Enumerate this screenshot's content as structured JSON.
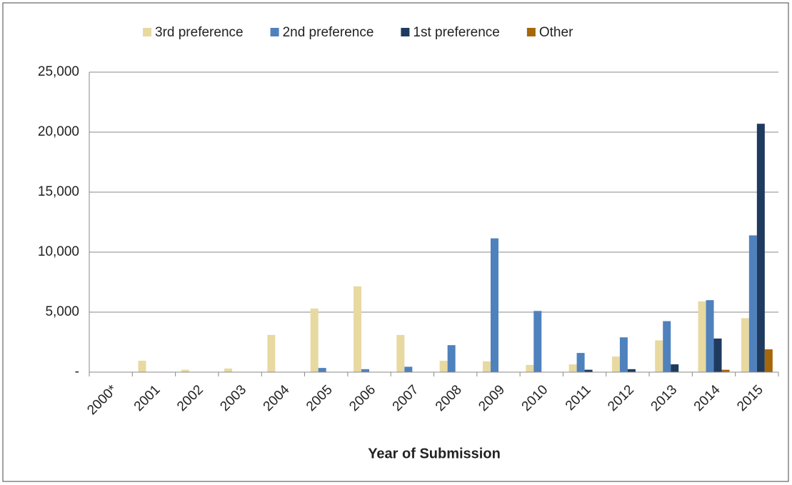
{
  "chart_data": {
    "type": "bar",
    "x_label": "Year of Submission",
    "categories": [
      "2000*",
      "2001",
      "2002",
      "2003",
      "2004",
      "2005",
      "2006",
      "2007",
      "2008",
      "2009",
      "2010",
      "2011",
      "2012",
      "2013",
      "2014",
      "2015"
    ],
    "series": [
      {
        "name": "3rd preference",
        "color": "#e8d9a0",
        "values": [
          0,
          950,
          200,
          300,
          3100,
          5300,
          7150,
          3100,
          950,
          900,
          600,
          650,
          1300,
          2650,
          5900,
          4500
        ]
      },
      {
        "name": "2nd preference",
        "color": "#4f81bd",
        "values": [
          0,
          0,
          0,
          0,
          0,
          350,
          250,
          450,
          2250,
          11150,
          5100,
          1600,
          2900,
          4250,
          6000,
          11400
        ]
      },
      {
        "name": "1st preference",
        "color": "#1f3a5f",
        "values": [
          0,
          0,
          0,
          0,
          0,
          0,
          0,
          0,
          0,
          0,
          0,
          200,
          250,
          650,
          2800,
          20700
        ]
      },
      {
        "name": "Other",
        "color": "#a5670a",
        "values": [
          0,
          0,
          0,
          0,
          0,
          0,
          0,
          0,
          0,
          0,
          0,
          0,
          0,
          0,
          200,
          1900
        ]
      }
    ],
    "ylim": [
      0,
      25000
    ],
    "yticks": [
      {
        "value": 0,
        "label": "-"
      },
      {
        "value": 5000,
        "label": "5,000"
      },
      {
        "value": 10000,
        "label": "10,000"
      },
      {
        "value": 15000,
        "label": "15,000"
      },
      {
        "value": 20000,
        "label": "20,000"
      },
      {
        "value": 25000,
        "label": "25,000"
      }
    ],
    "grid": true,
    "legend": "top"
  }
}
